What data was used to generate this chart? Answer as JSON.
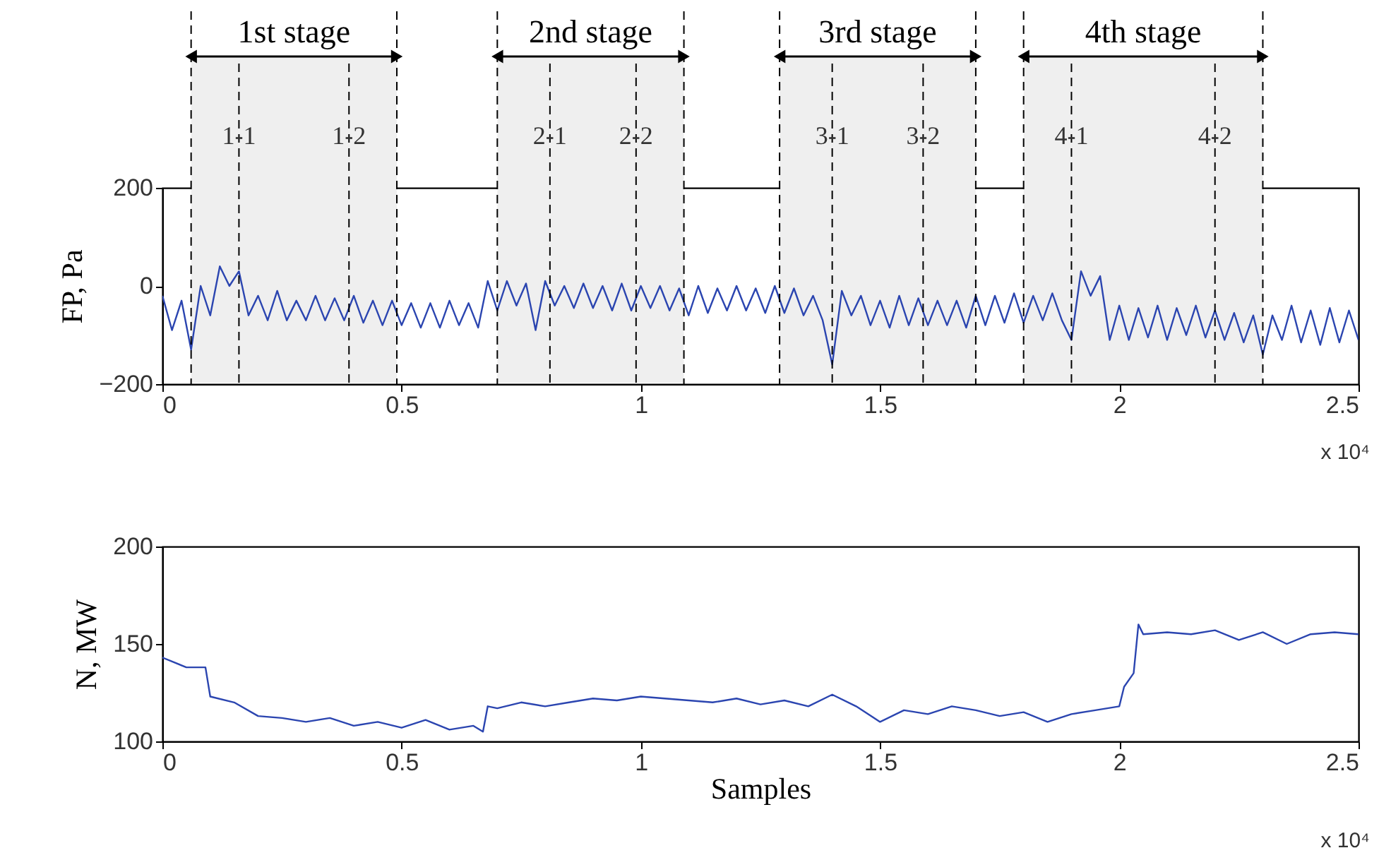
{
  "chart_data": [
    {
      "type": "line",
      "ylabel": "FP, Pa",
      "xlim": [
        0,
        2.5
      ],
      "xticks": [
        0,
        0.5,
        1,
        1.5,
        2,
        2.5
      ],
      "ylim": [
        -200,
        200
      ],
      "yticks": [
        -200,
        0,
        200
      ],
      "series": [
        {
          "color": "#2b45b0",
          "x": [
            0,
            0.02,
            0.04,
            0.06,
            0.08,
            0.1,
            0.12,
            0.14,
            0.16,
            0.18,
            0.2,
            0.22,
            0.24,
            0.26,
            0.28,
            0.3,
            0.32,
            0.34,
            0.36,
            0.38,
            0.4,
            0.42,
            0.44,
            0.46,
            0.48,
            0.5,
            0.52,
            0.54,
            0.56,
            0.58,
            0.6,
            0.62,
            0.64,
            0.66,
            0.68,
            0.7,
            0.72,
            0.74,
            0.76,
            0.78,
            0.8,
            0.82,
            0.84,
            0.86,
            0.88,
            0.9,
            0.92,
            0.94,
            0.96,
            0.98,
            1.0,
            1.02,
            1.04,
            1.06,
            1.08,
            1.1,
            1.12,
            1.14,
            1.16,
            1.18,
            1.2,
            1.22,
            1.24,
            1.26,
            1.28,
            1.3,
            1.32,
            1.34,
            1.36,
            1.38,
            1.4,
            1.42,
            1.44,
            1.46,
            1.48,
            1.5,
            1.52,
            1.54,
            1.56,
            1.58,
            1.6,
            1.62,
            1.64,
            1.66,
            1.68,
            1.7,
            1.72,
            1.74,
            1.76,
            1.78,
            1.8,
            1.82,
            1.84,
            1.86,
            1.88,
            1.9,
            1.92,
            1.94,
            1.96,
            1.98,
            2.0,
            2.02,
            2.04,
            2.06,
            2.08,
            2.1,
            2.12,
            2.14,
            2.16,
            2.18,
            2.2,
            2.22,
            2.24,
            2.26,
            2.28,
            2.3,
            2.32,
            2.34,
            2.36,
            2.38,
            2.4,
            2.42,
            2.44,
            2.46,
            2.48,
            2.5
          ],
          "values": [
            -20,
            -90,
            -30,
            -130,
            0,
            -60,
            40,
            0,
            30,
            -60,
            -20,
            -70,
            -10,
            -70,
            -30,
            -70,
            -20,
            -70,
            -25,
            -70,
            -20,
            -75,
            -30,
            -80,
            -30,
            -80,
            -35,
            -85,
            -35,
            -85,
            -30,
            -80,
            -35,
            -85,
            10,
            -50,
            10,
            -40,
            5,
            -90,
            10,
            -40,
            0,
            -45,
            5,
            -45,
            0,
            -50,
            5,
            -50,
            0,
            -45,
            0,
            -50,
            -5,
            -60,
            0,
            -55,
            -5,
            -50,
            0,
            -50,
            -5,
            -55,
            0,
            -55,
            -5,
            -60,
            -20,
            -70,
            -160,
            -10,
            -60,
            -20,
            -80,
            -30,
            -85,
            -20,
            -80,
            -25,
            -80,
            -30,
            -80,
            -30,
            -85,
            -20,
            -80,
            -20,
            -75,
            -15,
            -75,
            -20,
            -70,
            -15,
            -70,
            -110,
            30,
            -20,
            20,
            -110,
            -40,
            -110,
            -45,
            -105,
            -40,
            -110,
            -45,
            -100,
            -40,
            -105,
            -50,
            -110,
            -55,
            -115,
            -60,
            -140,
            -60,
            -110,
            -40,
            -115,
            -50,
            -120,
            -45,
            -115,
            -50,
            -110
          ]
        }
      ],
      "bands": [
        {
          "axis": "x",
          "from": 0.06,
          "to": 0.49,
          "label": "1st stage",
          "color": "#efefef"
        },
        {
          "axis": "x",
          "from": 0.7,
          "to": 1.09,
          "label": "2nd stage",
          "color": "#efefef"
        },
        {
          "axis": "x",
          "from": 1.29,
          "to": 1.7,
          "label": "3rd stage",
          "color": "#efefef"
        },
        {
          "axis": "x",
          "from": 1.8,
          "to": 2.3,
          "label": "4th stage",
          "color": "#efefef"
        }
      ],
      "ref_lines": [
        {
          "axis": "x",
          "value": 0.16,
          "line_style": "dashed"
        },
        {
          "axis": "x",
          "value": 0.39,
          "line_style": "dashed"
        },
        {
          "axis": "x",
          "value": 0.81,
          "line_style": "dashed"
        },
        {
          "axis": "x",
          "value": 0.99,
          "line_style": "dashed"
        },
        {
          "axis": "x",
          "value": 1.4,
          "line_style": "dashed"
        },
        {
          "axis": "x",
          "value": 1.59,
          "line_style": "dashed"
        },
        {
          "axis": "x",
          "value": 1.9,
          "line_style": "dashed"
        },
        {
          "axis": "x",
          "value": 2.2,
          "line_style": "dashed"
        }
      ],
      "annotations": [
        {
          "text": "1-1",
          "x": 0.16
        },
        {
          "text": "1-2",
          "x": 0.39
        },
        {
          "text": "2-1",
          "x": 0.81
        },
        {
          "text": "2-2",
          "x": 0.99
        },
        {
          "text": "3-1",
          "x": 1.4
        },
        {
          "text": "3-2",
          "x": 1.59
        },
        {
          "text": "4-1",
          "x": 1.9
        },
        {
          "text": "4-2",
          "x": 2.2
        },
        "x 10⁴"
      ]
    },
    {
      "type": "line",
      "xlabel": "Samples",
      "ylabel": "N, MW",
      "xlim": [
        0,
        2.5
      ],
      "xticks": [
        0,
        0.5,
        1,
        1.5,
        2,
        2.5
      ],
      "ylim": [
        100,
        200
      ],
      "yticks": [
        100,
        150,
        200
      ],
      "series": [
        {
          "color": "#2b45b0",
          "x": [
            0,
            0.05,
            0.09,
            0.1,
            0.15,
            0.2,
            0.25,
            0.3,
            0.35,
            0.4,
            0.45,
            0.5,
            0.55,
            0.6,
            0.65,
            0.67,
            0.68,
            0.7,
            0.75,
            0.8,
            0.85,
            0.9,
            0.95,
            1.0,
            1.05,
            1.1,
            1.15,
            1.2,
            1.25,
            1.3,
            1.35,
            1.4,
            1.45,
            1.5,
            1.55,
            1.6,
            1.65,
            1.7,
            1.75,
            1.8,
            1.85,
            1.9,
            1.95,
            2.0,
            2.01,
            2.03,
            2.04,
            2.05,
            2.1,
            2.15,
            2.2,
            2.25,
            2.3,
            2.35,
            2.4,
            2.45,
            2.5
          ],
          "values": [
            143,
            138,
            138,
            123,
            120,
            113,
            112,
            110,
            112,
            108,
            110,
            107,
            111,
            106,
            108,
            105,
            118,
            117,
            120,
            118,
            120,
            122,
            121,
            123,
            122,
            121,
            120,
            122,
            119,
            121,
            118,
            124,
            118,
            110,
            116,
            114,
            118,
            116,
            113,
            115,
            110,
            114,
            116,
            118,
            128,
            135,
            160,
            155,
            156,
            155,
            157,
            152,
            156,
            150,
            155,
            156,
            155
          ]
        }
      ],
      "annotations": [
        "x 10⁴"
      ]
    }
  ]
}
